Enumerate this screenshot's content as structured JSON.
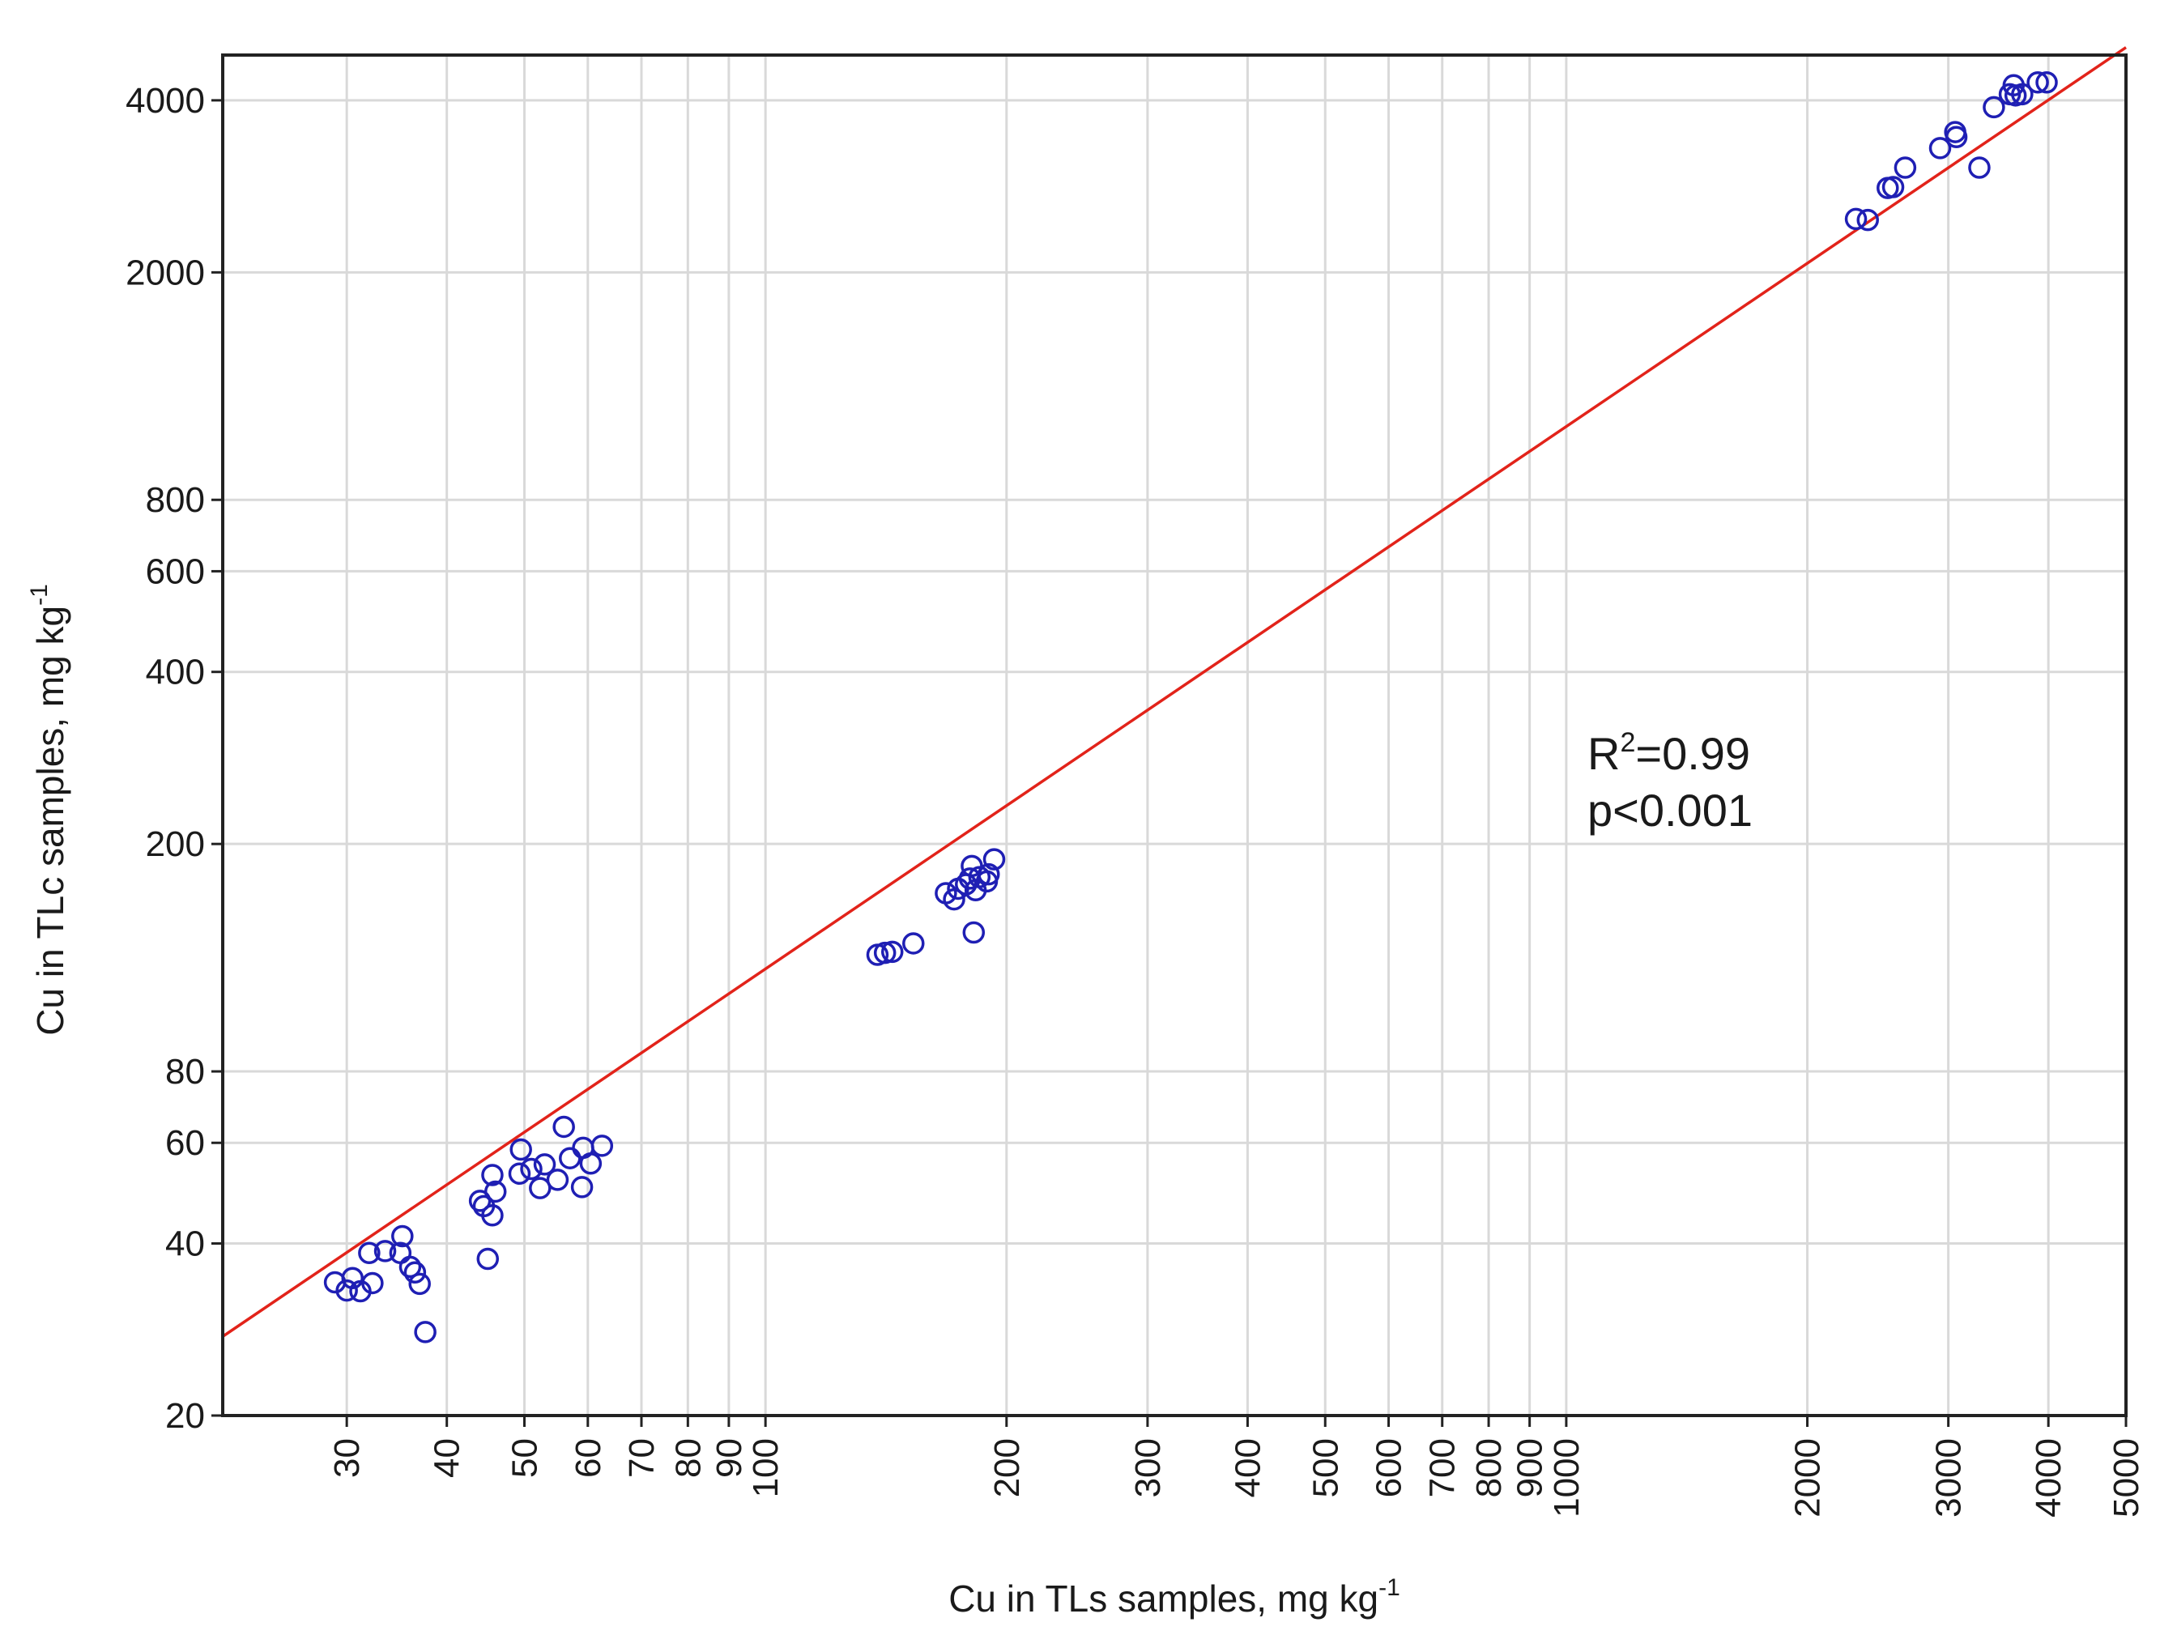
{
  "chart_data": {
    "type": "scatter",
    "xlabel": "Cu in TLs samples, mg kg",
    "xlabel_sup": "-1",
    "ylabel": "Cu in TLc samples, mg kg",
    "ylabel_sup": "-1",
    "x_scale": "log",
    "y_scale": "log",
    "xlim": [
      21,
      5000
    ],
    "ylim": [
      20,
      4800
    ],
    "x_ticks": [
      30,
      40,
      50,
      60,
      70,
      80,
      90,
      100,
      200,
      300,
      400,
      500,
      600,
      700,
      800,
      900,
      1000,
      2000,
      3000,
      4000,
      5000
    ],
    "x_tick_labels": [
      "30",
      "40",
      "50",
      "60",
      "70",
      "80",
      "90",
      "100",
      "200",
      "300",
      "400",
      "500",
      "600",
      "700",
      "800",
      "900",
      "1000",
      "2000",
      "3000",
      "4000",
      "5000"
    ],
    "y_ticks": [
      20,
      40,
      60,
      80,
      200,
      400,
      600,
      800,
      2000,
      4000
    ],
    "y_tick_labels": [
      "20",
      "40",
      "60",
      "80",
      "200",
      "400",
      "600",
      "800",
      "2000",
      "4000"
    ],
    "y_grid_only": [
      20,
      40,
      60,
      80,
      200,
      400,
      600,
      800,
      2000,
      4000
    ],
    "grid": true,
    "annotation": {
      "r2_prefix": "R",
      "r2_sup": "2",
      "r2_value": "=0.99",
      "p_text": "p<0.001"
    },
    "fit_line": {
      "x": [
        21,
        5000
      ],
      "y": [
        27.5,
        4950
      ]
    },
    "points": [
      [
        29,
        34.2
      ],
      [
        30,
        33.1
      ],
      [
        30.5,
        34.8
      ],
      [
        31.2,
        33
      ],
      [
        32,
        38.5
      ],
      [
        32.3,
        34.1
      ],
      [
        33.5,
        38.8
      ],
      [
        35,
        38.5
      ],
      [
        35.2,
        41.2
      ],
      [
        36,
        36.4
      ],
      [
        36.5,
        35.6
      ],
      [
        37,
        34
      ],
      [
        37.6,
        28
      ],
      [
        44,
        47.5
      ],
      [
        44.5,
        46.5
      ],
      [
        45,
        37.6
      ],
      [
        45.6,
        52.7
      ],
      [
        45.6,
        44.8
      ],
      [
        46,
        49.3
      ],
      [
        49.3,
        53
      ],
      [
        49.5,
        58.4
      ],
      [
        51,
        54
      ],
      [
        52.3,
        50
      ],
      [
        53,
        55
      ],
      [
        55,
        51.7
      ],
      [
        56,
        64
      ],
      [
        57,
        56.4
      ],
      [
        59,
        50.2
      ],
      [
        59.2,
        58.8
      ],
      [
        60.5,
        55.2
      ],
      [
        62.5,
        59.3
      ],
      [
        138,
        128
      ],
      [
        141,
        129
      ],
      [
        144,
        129.5
      ],
      [
        153,
        134
      ],
      [
        168,
        164
      ],
      [
        172,
        160
      ],
      [
        174,
        167
      ],
      [
        178,
        170
      ],
      [
        180,
        174
      ],
      [
        181,
        183
      ],
      [
        182,
        140
      ],
      [
        183,
        166
      ],
      [
        185,
        175
      ],
      [
        189,
        172
      ],
      [
        190,
        177
      ],
      [
        193,
        188
      ],
      [
        2300,
        2480
      ],
      [
        2380,
        2470
      ],
      [
        2520,
        2810
      ],
      [
        2560,
        2820
      ],
      [
        2650,
        3050
      ],
      [
        2930,
        3300
      ],
      [
        3060,
        3520
      ],
      [
        3070,
        3450
      ],
      [
        3280,
        3050
      ],
      [
        3420,
        3890
      ],
      [
        3580,
        4100
      ],
      [
        3620,
        4250
      ],
      [
        3640,
        4080
      ],
      [
        3710,
        4100
      ],
      [
        3880,
        4300
      ],
      [
        3980,
        4300
      ]
    ]
  }
}
